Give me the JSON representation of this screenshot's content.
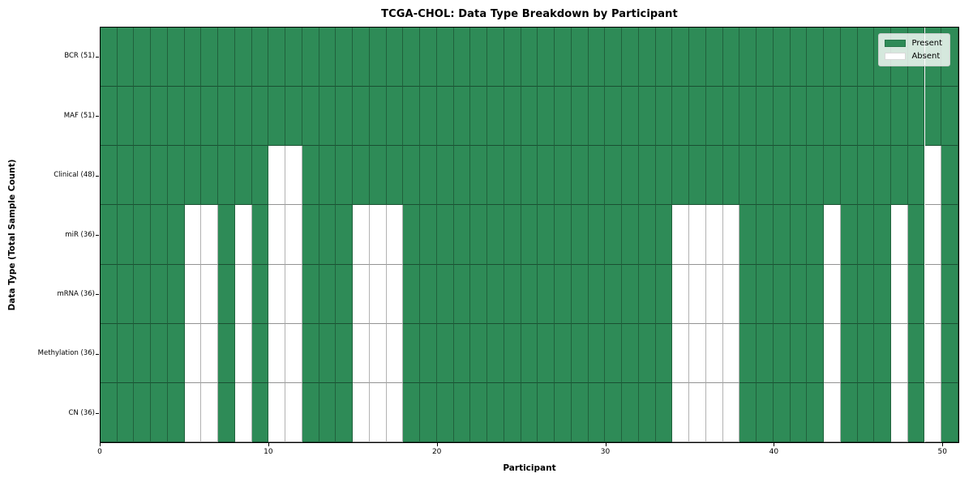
{
  "chart_data": {
    "type": "heatmap",
    "title": "TCGA-CHOL: Data Type Breakdown by Participant",
    "xlabel": "Participant",
    "ylabel": "Data Type (Total Sample Count)",
    "n_participants": 51,
    "x_axis": {
      "min": 0,
      "max": 51,
      "ticks": [
        0,
        10,
        20,
        30,
        40,
        50
      ]
    },
    "rows": [
      {
        "data_type": "BCR",
        "label": "BCR (51)",
        "present_count": 51,
        "absent_participants": []
      },
      {
        "data_type": "MAF",
        "label": "MAF (51)",
        "present_count": 51,
        "absent_participants": []
      },
      {
        "data_type": "Clinical",
        "label": "Clinical (48)",
        "present_count": 48,
        "absent_participants": [
          10,
          11,
          49
        ]
      },
      {
        "data_type": "miR",
        "label": "miR (36)",
        "present_count": 36,
        "absent_participants": [
          5,
          6,
          8,
          10,
          11,
          15,
          16,
          17,
          34,
          35,
          36,
          37,
          43,
          47,
          49
        ]
      },
      {
        "data_type": "mRNA",
        "label": "mRNA (36)",
        "present_count": 36,
        "absent_participants": [
          5,
          6,
          8,
          10,
          11,
          15,
          16,
          17,
          34,
          35,
          36,
          37,
          43,
          47,
          49
        ]
      },
      {
        "data_type": "Methylation",
        "label": "Methylation (36)",
        "present_count": 36,
        "absent_participants": [
          5,
          6,
          8,
          10,
          11,
          15,
          16,
          17,
          34,
          35,
          36,
          37,
          43,
          47,
          49
        ]
      },
      {
        "data_type": "CN",
        "label": "CN (36)",
        "present_count": 36,
        "absent_participants": [
          5,
          6,
          8,
          10,
          11,
          15,
          16,
          17,
          34,
          35,
          36,
          37,
          43,
          47,
          49
        ]
      }
    ],
    "legend": {
      "position": "upper right",
      "entries": [
        {
          "label": "Present",
          "color": "#2e8b57"
        },
        {
          "label": "Absent",
          "color": "#ffffff"
        }
      ]
    },
    "colors": {
      "present": "#2e8b57",
      "absent": "#ffffff"
    }
  }
}
